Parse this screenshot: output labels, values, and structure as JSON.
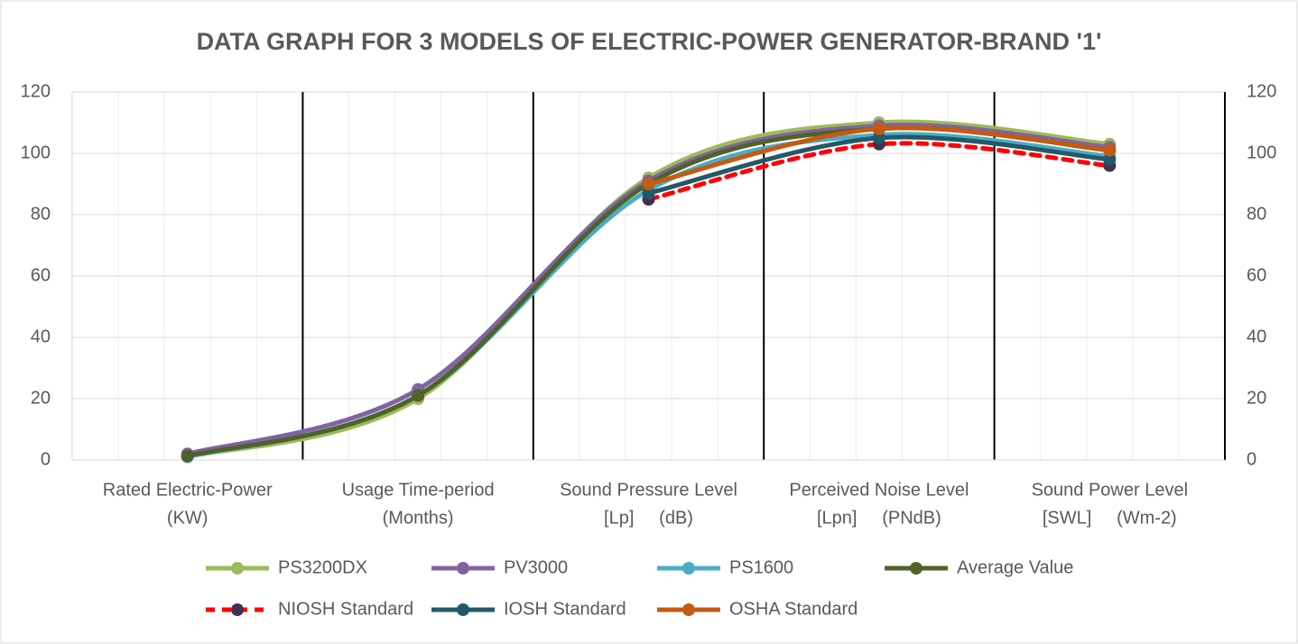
{
  "chart_data": {
    "type": "line",
    "title": "DATA GRAPH FOR 3 MODELS OF ELECTRIC-POWER GENERATOR-BRAND '1'",
    "categories": [
      [
        "Rated Electric-Power",
        "(KW)"
      ],
      [
        "Usage Time-period",
        "(Months)"
      ],
      [
        "Sound Pressure Level",
        "[Lp]     (dB)"
      ],
      [
        "Perceived Noise Level",
        "[Lpn]     (PNdB)"
      ],
      [
        "Sound Power Level",
        "[SWL]     (Wm-2)"
      ]
    ],
    "series": [
      {
        "name": "PS3200DX",
        "color": "#9bbb59",
        "marker_color": "#9bbb59",
        "values": [
          1,
          20,
          92,
          110,
          103
        ]
      },
      {
        "name": "PV3000",
        "color": "#8064a2",
        "marker_color": "#8064a2",
        "values": [
          2,
          23,
          91,
          109,
          102
        ]
      },
      {
        "name": "PS1600",
        "color": "#4bacc6",
        "marker_color": "#4bacc6",
        "values": [
          1,
          21,
          88,
          106,
          99
        ]
      },
      {
        "name": "Average Value",
        "color": "#4f6228",
        "marker_color": "#4f6228",
        "values": [
          1.3,
          21,
          90,
          108,
          101
        ]
      },
      {
        "name": "NIOSH Standard",
        "color": "#ff0000",
        "marker_color": "#403152",
        "dashed": true,
        "values": [
          null,
          null,
          85,
          103,
          96
        ]
      },
      {
        "name": "IOSH Standard",
        "color": "#215968",
        "marker_color": "#215968",
        "values": [
          null,
          null,
          87,
          105,
          98
        ]
      },
      {
        "name": "OSHA Standard",
        "color": "#c55a11",
        "marker_color": "#c55a11",
        "values": [
          null,
          null,
          90,
          108,
          101
        ]
      }
    ],
    "ylim": [
      0,
      120
    ],
    "yticks": [
      0,
      20,
      40,
      60,
      80,
      100,
      120
    ],
    "y2lim": [
      0,
      120
    ],
    "y2ticks": [
      0,
      20,
      40,
      60,
      80,
      100,
      120
    ],
    "grid": true,
    "smooth": true,
    "legend": "bottom"
  }
}
